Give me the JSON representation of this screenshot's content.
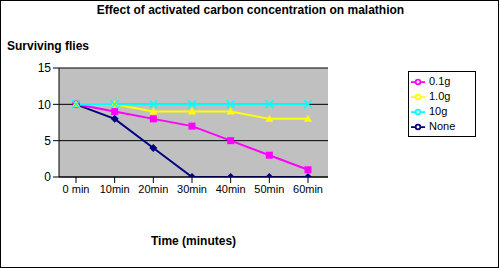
{
  "chart_data": {
    "type": "line",
    "title": "Effect of activated carbon concentration on malathion",
    "x_label": "Time (minutes)",
    "y_label": "Surviving flies",
    "categories": [
      "0 min",
      "10min",
      "20min",
      "30min",
      "40min",
      "50min",
      "60min"
    ],
    "series": [
      {
        "name": "None",
        "color": "#000080",
        "marker": "diamond",
        "values": [
          10,
          8,
          4,
          0,
          0,
          0,
          0
        ]
      },
      {
        "name": "0.1g",
        "color": "#FF00FF",
        "marker": "square",
        "values": [
          10,
          9,
          8,
          7,
          5,
          3,
          1
        ]
      },
      {
        "name": "1.0g",
        "color": "#FFFF00",
        "marker": "triangle",
        "values": [
          10,
          10,
          9,
          9,
          9,
          8,
          8
        ]
      },
      {
        "name": "10g",
        "color": "#00FFFF",
        "marker": "x",
        "values": [
          10,
          10,
          10,
          10,
          10,
          10,
          10
        ]
      }
    ],
    "ylim": [
      0,
      15
    ],
    "yticks": [
      0,
      5,
      10,
      15
    ],
    "grid": true,
    "legend": "right"
  }
}
